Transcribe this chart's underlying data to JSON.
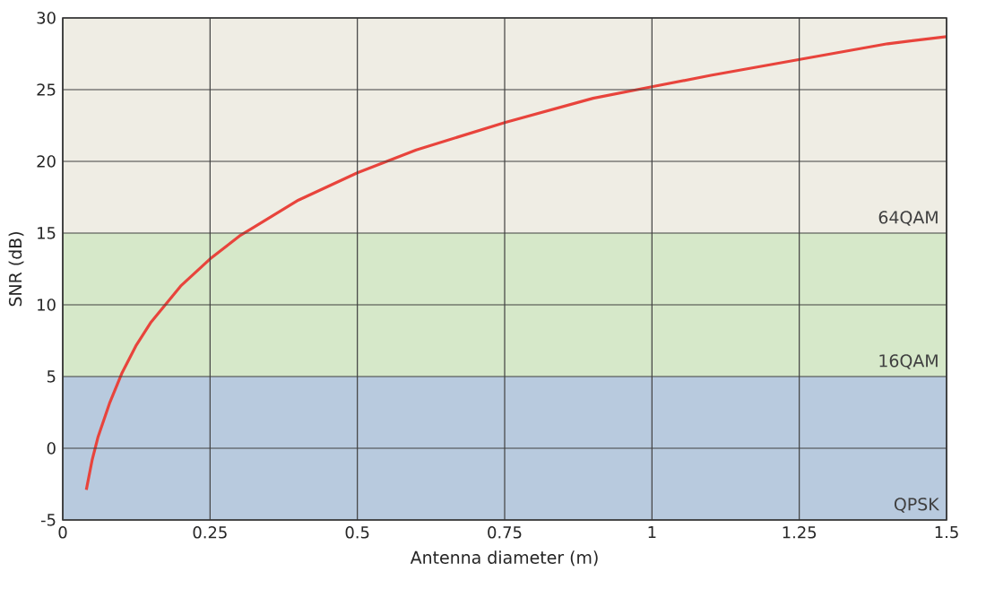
{
  "chart_data": {
    "type": "line",
    "xlabel": "Antenna diameter (m)",
    "ylabel": "SNR (dB)",
    "x": [
      0.04,
      0.05,
      0.06,
      0.08,
      0.1,
      0.125,
      0.15,
      0.2,
      0.25,
      0.3,
      0.4,
      0.5,
      0.6,
      0.75,
      0.9,
      1.0,
      1.1,
      1.25,
      1.4,
      1.5
    ],
    "series": [
      {
        "color": "#e8443c",
        "values": [
          -2.9,
          -0.8,
          0.8,
          3.2,
          5.2,
          7.2,
          8.8,
          11.3,
          13.2,
          14.8,
          17.3,
          19.2,
          20.8,
          22.7,
          24.4,
          25.2,
          26.0,
          27.1,
          28.2,
          28.7
        ]
      }
    ],
    "xlim": [
      0,
      1.5
    ],
    "ylim": [
      -5,
      30
    ],
    "xticks": [
      0,
      0.25,
      0.5,
      0.75,
      1,
      1.25,
      1.5
    ],
    "yticks": [
      -5,
      0,
      5,
      10,
      15,
      20,
      25,
      30
    ],
    "bands": [
      {
        "axis": "y",
        "from": -5,
        "to": 5,
        "label": "QPSK",
        "color": "#b8cade"
      },
      {
        "axis": "y",
        "from": 5,
        "to": 15,
        "label": "16QAM",
        "color": "#d6e8c9"
      },
      {
        "axis": "y",
        "from": 15,
        "to": 30,
        "label": "64QAM",
        "color": "#efede4"
      }
    ],
    "grid": true,
    "marker": "none",
    "line_style": "solid"
  }
}
